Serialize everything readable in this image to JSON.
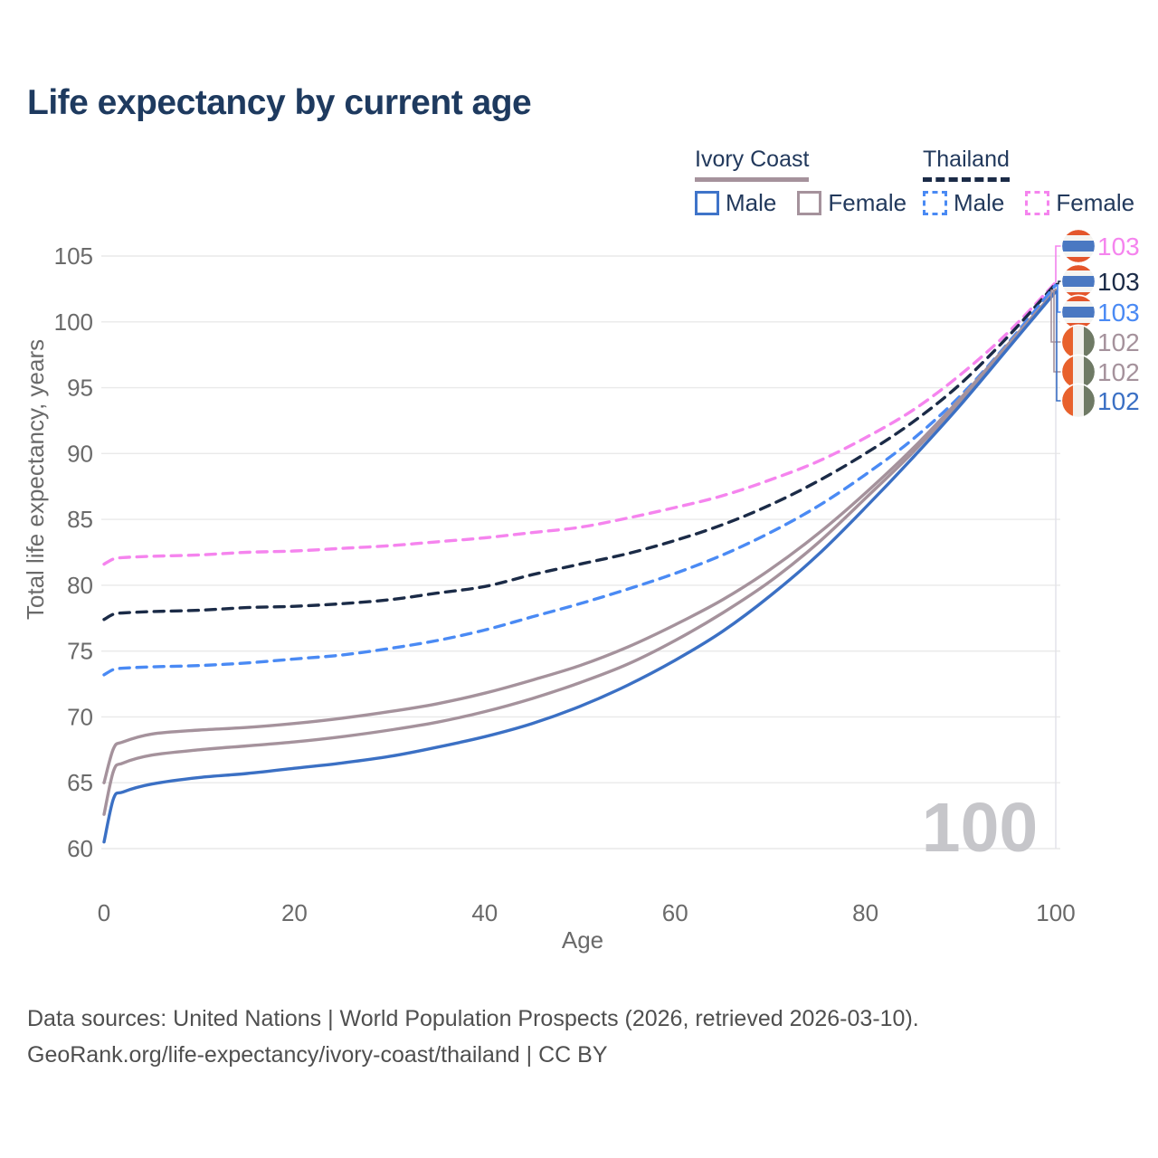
{
  "title": "Life expectancy by current age",
  "legend": {
    "groups": [
      {
        "country": "Ivory Coast",
        "line_style": "solid",
        "color": "#a5929c",
        "items": [
          {
            "label": "Male",
            "color": "#3f74c9",
            "dash": false
          },
          {
            "label": "Female",
            "color": "#a5929c",
            "dash": false
          }
        ]
      },
      {
        "country": "Thailand",
        "line_style": "dashed",
        "color": "#1b2b47",
        "items": [
          {
            "label": "Male",
            "color": "#4a8af4",
            "dash": true
          },
          {
            "label": "Female",
            "color": "#f584ee",
            "dash": true
          }
        ]
      }
    ]
  },
  "flags": {
    "thailand": {
      "type": "hstripes",
      "stripes": [
        {
          "c": "#e4562c",
          "f": 0.1667
        },
        {
          "c": "#f4f4f2",
          "f": 0.1667
        },
        {
          "c": "#4a78c2",
          "f": 0.3332
        },
        {
          "c": "#f4f4f2",
          "f": 0.1667
        },
        {
          "c": "#e4562c",
          "f": 0.1667
        }
      ]
    },
    "ivory_coast": {
      "type": "vstripes",
      "stripes": [
        {
          "c": "#e8612c",
          "f": 0.3333
        },
        {
          "c": "#f2f1ee",
          "f": 0.3334
        },
        {
          "c": "#6f7a65",
          "f": 0.3333
        }
      ]
    }
  },
  "chart_data": {
    "type": "line",
    "title": "Life expectancy by current age",
    "xlabel": "Age",
    "ylabel": "Total life expectancy, years",
    "xlim": [
      0,
      100
    ],
    "ylim": [
      60,
      105
    ],
    "xticks": [
      0,
      20,
      40,
      60,
      80,
      100
    ],
    "yticks": [
      60,
      65,
      70,
      75,
      80,
      85,
      90,
      95,
      100,
      105
    ],
    "grid": "horizontal",
    "age_indicator": 100,
    "watermark": "100",
    "ages": [
      0,
      1,
      2,
      5,
      10,
      15,
      20,
      25,
      30,
      35,
      40,
      45,
      50,
      55,
      60,
      65,
      70,
      75,
      80,
      85,
      90,
      95,
      100
    ],
    "series": [
      {
        "name": "Thailand Female",
        "flag": "thailand",
        "color": "#f584ee",
        "dash": true,
        "end_label": "103",
        "end_label_color": "#f584ee",
        "values": [
          81.6,
          82.0,
          82.1,
          82.2,
          82.3,
          82.5,
          82.6,
          82.8,
          83.0,
          83.3,
          83.6,
          84.0,
          84.4,
          85.1,
          85.9,
          86.8,
          88.0,
          89.4,
          91.2,
          93.3,
          96.0,
          99.2,
          103.0
        ]
      },
      {
        "name": "Thailand",
        "flag": "thailand",
        "color": "#1b2b47",
        "dash": true,
        "end_label": "103",
        "end_label_color": "#1b2b47",
        "values": [
          77.4,
          77.8,
          77.9,
          78.0,
          78.1,
          78.3,
          78.4,
          78.6,
          78.9,
          79.4,
          79.9,
          80.8,
          81.6,
          82.4,
          83.4,
          84.6,
          86.1,
          87.9,
          90.0,
          92.4,
          95.3,
          98.9,
          102.9
        ]
      },
      {
        "name": "Thailand Male",
        "flag": "thailand",
        "color": "#4a8af4",
        "dash": true,
        "end_label": "103",
        "end_label_color": "#4a8af4",
        "values": [
          73.2,
          73.6,
          73.7,
          73.8,
          73.9,
          74.1,
          74.4,
          74.7,
          75.2,
          75.8,
          76.6,
          77.6,
          78.6,
          79.7,
          80.9,
          82.3,
          84.0,
          86.0,
          88.4,
          91.1,
          94.4,
          98.4,
          102.8
        ]
      },
      {
        "name": "Ivory Coast Female",
        "flag": "ivory_coast",
        "color": "#a5929c",
        "dash": false,
        "end_label": "102",
        "end_label_color": "#a5929c",
        "values": [
          65.0,
          67.6,
          68.1,
          68.7,
          69.0,
          69.2,
          69.5,
          69.9,
          70.4,
          71.0,
          71.8,
          72.8,
          73.9,
          75.3,
          77.0,
          78.9,
          81.2,
          83.9,
          87.0,
          90.4,
          94.2,
          98.3,
          102.4
        ]
      },
      {
        "name": "Ivory Coast",
        "flag": "ivory_coast",
        "color": "#a5929c",
        "dash": false,
        "end_label": "102",
        "end_label_color": "#a5929c",
        "values": [
          62.6,
          65.9,
          66.5,
          67.1,
          67.5,
          67.8,
          68.1,
          68.5,
          69.0,
          69.6,
          70.4,
          71.4,
          72.6,
          74.0,
          75.8,
          77.9,
          80.3,
          83.2,
          86.6,
          90.1,
          94.0,
          98.2,
          102.4
        ]
      },
      {
        "name": "Ivory Coast Male",
        "flag": "ivory_coast",
        "color": "#3b70c4",
        "dash": false,
        "end_label": "102",
        "end_label_color": "#3b70c4",
        "values": [
          60.5,
          63.8,
          64.3,
          64.9,
          65.4,
          65.7,
          66.1,
          66.5,
          67.0,
          67.7,
          68.5,
          69.5,
          70.8,
          72.4,
          74.3,
          76.5,
          79.2,
          82.3,
          85.9,
          89.7,
          93.7,
          98.0,
          102.3
        ]
      }
    ]
  },
  "footer": {
    "line1": "Data sources: United Nations | World Population Prospects (2026, retrieved 2026-03-10).",
    "line2": "GeoRank.org/life-expectancy/ivory-coast/thailand | CC BY"
  }
}
